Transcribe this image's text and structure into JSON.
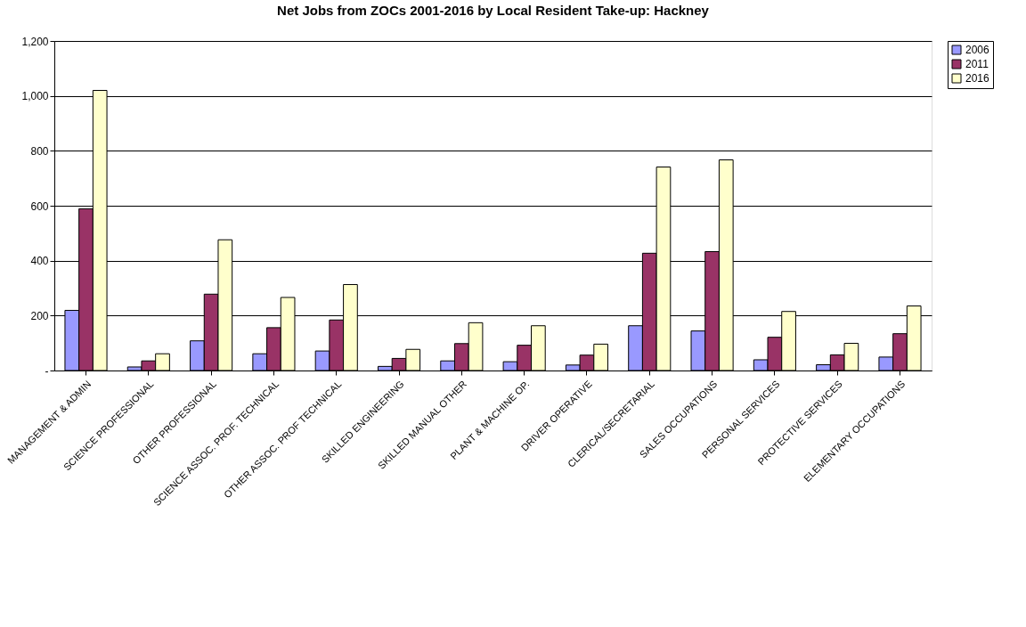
{
  "chart_data": {
    "type": "bar",
    "title": "Net Jobs from ZOCs 2001-2016 by Local Resident Take-up: Hackney",
    "categories": [
      "MANAGEMENT & ADMIN",
      "SCIENCE PROFESSIONAL",
      "OTHER PROFESSIONAL",
      "SCIENCE ASSOC. PROF. TECHNICAL",
      "OTHER ASSOC. PROF TECHNICAL",
      "SKILLED ENGINEERING",
      "SKILLED MANUAL OTHER",
      "PLANT & MACHINE OP.",
      "DRIVER OPERATIVE",
      "CLERICAL/SECRETARIAL",
      "SALES OCCUPATIONS",
      "PERSONAL SERVICES",
      "PROTECTIVE SERVICES",
      "ELEMENTARY OCCUPATIONS"
    ],
    "series": [
      {
        "name": "2006",
        "color": "#9999ff",
        "values": [
          219,
          13,
          108,
          61,
          71,
          15,
          35,
          32,
          20,
          163,
          144,
          39,
          21,
          49
        ]
      },
      {
        "name": "2011",
        "color": "#993366",
        "values": [
          589,
          35,
          278,
          156,
          184,
          44,
          98,
          92,
          56,
          427,
          433,
          121,
          57,
          134
        ]
      },
      {
        "name": "2016",
        "color": "#ffffcc",
        "values": [
          1020,
          61,
          476,
          266,
          313,
          77,
          174,
          163,
          96,
          741,
          767,
          215,
          99,
          235
        ]
      }
    ],
    "ylim": [
      0,
      1200
    ],
    "yticks": [
      {
        "value": 0,
        "label": "-"
      },
      200,
      400,
      600,
      800,
      {
        "value": 1000,
        "label": "1,000"
      },
      {
        "value": 1200,
        "label": "1,200"
      }
    ],
    "grid": "y",
    "legend": "right"
  }
}
